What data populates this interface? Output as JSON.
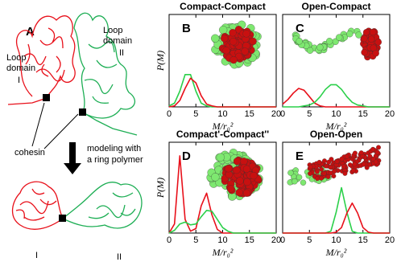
{
  "diagram": {
    "label": "A",
    "loop_left": [
      "Loop",
      "domain",
      "I"
    ],
    "loop_right": [
      "Loop",
      "domain",
      "II"
    ],
    "cohesin": "cohesin",
    "modeling": [
      "modeling with",
      "a ring polymer"
    ],
    "bottom_labels": [
      "I",
      "II"
    ]
  },
  "chart_data": [
    {
      "type": "line",
      "title": "Compact-Compact",
      "panel_label": "B",
      "ylabel": "P(M)",
      "xlabel": "M/r₀²",
      "x": [
        0,
        1,
        2,
        3,
        4,
        5,
        6,
        7,
        8,
        9,
        10,
        11,
        12,
        13,
        14,
        15,
        16,
        17,
        18,
        19,
        20
      ],
      "series": [
        {
          "color": "#2bd04a",
          "values": [
            0.01,
            0.04,
            0.17,
            0.35,
            0.35,
            0.17,
            0.04,
            0.01,
            0,
            0,
            0,
            0,
            0,
            0,
            0,
            0,
            0,
            0,
            0,
            0,
            0
          ]
        },
        {
          "color": "#e8101a",
          "values": [
            0,
            0.01,
            0.07,
            0.2,
            0.31,
            0.26,
            0.12,
            0.03,
            0.01,
            0,
            0,
            0,
            0,
            0,
            0,
            0,
            0,
            0,
            0,
            0,
            0
          ]
        }
      ],
      "xlim": [
        0,
        20
      ],
      "xticks": [
        0,
        5,
        10,
        15,
        20
      ],
      "ylim": [
        0,
        1
      ]
    },
    {
      "type": "line",
      "title": "Open-Compact",
      "panel_label": "C",
      "xlabel": "M/r₀²",
      "x": [
        0,
        1,
        2,
        3,
        4,
        5,
        6,
        7,
        8,
        9,
        10,
        11,
        12,
        13,
        14,
        15,
        16,
        17,
        18,
        19,
        20
      ],
      "series": [
        {
          "color": "#e8101a",
          "values": [
            0.03,
            0.08,
            0.15,
            0.2,
            0.18,
            0.11,
            0.04,
            0.01,
            0,
            0,
            0,
            0,
            0,
            0,
            0,
            0,
            0,
            0,
            0,
            0,
            0
          ]
        },
        {
          "color": "#2bd04a",
          "values": [
            0,
            0,
            0,
            0,
            0.01,
            0.02,
            0.05,
            0.11,
            0.19,
            0.24,
            0.24,
            0.19,
            0.11,
            0.05,
            0.02,
            0.01,
            0,
            0,
            0,
            0,
            0
          ]
        }
      ],
      "xlim": [
        0,
        20
      ],
      "xticks": [
        0,
        5,
        10,
        15,
        20
      ],
      "ylim": [
        0,
        1
      ]
    },
    {
      "type": "line",
      "title": "Compact'-Compact''",
      "panel_label": "D",
      "ylabel": "P(M)",
      "xlabel": "M/r₀²",
      "x": [
        0,
        1,
        2,
        3,
        4,
        5,
        6,
        7,
        8,
        9,
        10,
        11,
        12,
        13,
        14,
        15,
        16,
        17,
        18,
        19,
        20
      ],
      "series": [
        {
          "color": "#e8101a",
          "values": [
            0,
            0.1,
            0.85,
            0.15,
            0.02,
            0.05,
            0.3,
            0.44,
            0.2,
            0.04,
            0,
            0,
            0,
            0,
            0,
            0,
            0,
            0,
            0,
            0,
            0
          ]
        },
        {
          "color": "#2bd04a",
          "values": [
            0,
            0.03,
            0.1,
            0.12,
            0.09,
            0.1,
            0.18,
            0.25,
            0.24,
            0.15,
            0.06,
            0.02,
            0,
            0,
            0,
            0,
            0,
            0,
            0,
            0,
            0
          ]
        }
      ],
      "xlim": [
        0,
        20
      ],
      "xticks": [
        0,
        5,
        10,
        15,
        20
      ],
      "ylim": [
        0,
        1
      ]
    },
    {
      "type": "line",
      "title": "Open-Open",
      "panel_label": "E",
      "xlabel": "M/r₀²",
      "x": [
        0,
        1,
        2,
        3,
        4,
        5,
        6,
        7,
        8,
        9,
        10,
        11,
        12,
        13,
        14,
        15,
        16,
        17,
        18,
        19,
        20
      ],
      "series": [
        {
          "color": "#2bd04a",
          "values": [
            0,
            0,
            0,
            0,
            0,
            0,
            0,
            0,
            0,
            0.02,
            0.23,
            0.5,
            0.23,
            0.02,
            0,
            0,
            0,
            0,
            0,
            0,
            0
          ]
        },
        {
          "color": "#e8101a",
          "values": [
            0,
            0,
            0,
            0,
            0,
            0,
            0,
            0,
            0,
            0,
            0.01,
            0.06,
            0.22,
            0.33,
            0.22,
            0.06,
            0.01,
            0,
            0,
            0,
            0
          ]
        }
      ],
      "xlim": [
        0,
        20
      ],
      "xticks": [
        0,
        5,
        10,
        15,
        20
      ],
      "ylim": [
        0,
        1
      ]
    }
  ]
}
